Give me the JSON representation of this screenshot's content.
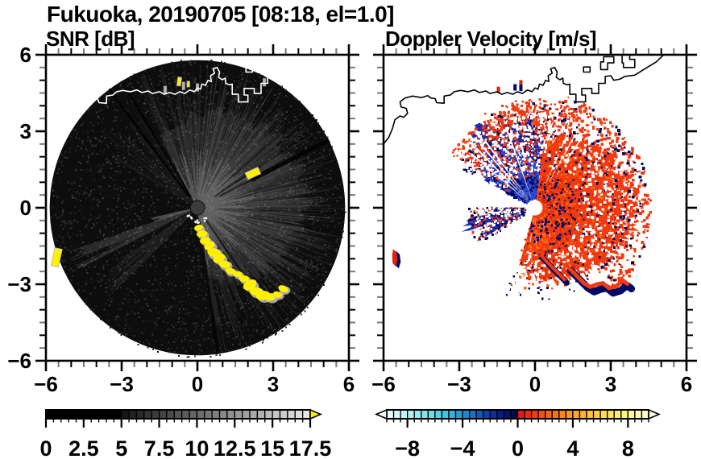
{
  "figure": {
    "title": "Fukuoka, 20190705 [08:18, el=1.0]",
    "site": "Fukuoka",
    "date": "20190705",
    "time": "08:18",
    "elevation": "1.0",
    "background": "#FFFFFF",
    "text_color": "#000000"
  },
  "coastline": {
    "main": [
      [
        -6,
        2.5
      ],
      [
        -5.8,
        2.75
      ],
      [
        -5.65,
        3.1
      ],
      [
        -5.55,
        3.45
      ],
      [
        -5.35,
        3.6
      ],
      [
        -5.2,
        3.55
      ],
      [
        -5.05,
        3.7
      ],
      [
        -5.1,
        3.9
      ],
      [
        -5.3,
        3.95
      ],
      [
        -5.35,
        4.15
      ],
      [
        -5.15,
        4.3
      ],
      [
        -4.85,
        4.38
      ],
      [
        -4.5,
        4.32
      ],
      [
        -4.25,
        4.4
      ],
      [
        -4.12,
        4.3
      ],
      [
        -3.95,
        4.28
      ],
      [
        -3.9,
        4.12
      ],
      [
        -3.6,
        4.1
      ],
      [
        -3.6,
        4.38
      ],
      [
        -3.35,
        4.42
      ],
      [
        -3.2,
        4.55
      ],
      [
        -2.95,
        4.6
      ],
      [
        -2.65,
        4.55
      ],
      [
        -2.4,
        4.62
      ],
      [
        -2.2,
        4.52
      ],
      [
        -1.95,
        4.58
      ],
      [
        -1.78,
        4.48
      ],
      [
        -1.5,
        4.55
      ],
      [
        -1.32,
        4.45
      ],
      [
        -1.1,
        4.52
      ],
      [
        -0.88,
        4.45
      ],
      [
        -0.7,
        4.55
      ],
      [
        -0.5,
        4.48
      ],
      [
        -0.3,
        4.62
      ],
      [
        -0.12,
        4.55
      ],
      [
        0,
        4.7
      ],
      [
        0.12,
        4.65
      ],
      [
        0.18,
        4.85
      ],
      [
        0.32,
        4.8
      ],
      [
        0.42,
        5.0
      ],
      [
        0.55,
        4.95
      ],
      [
        0.52,
        5.18
      ],
      [
        0.68,
        5.28
      ],
      [
        0.62,
        5.45
      ],
      [
        0.78,
        5.5
      ],
      [
        0.88,
        5.32
      ],
      [
        0.84,
        5.12
      ],
      [
        0.98,
        5.02
      ],
      [
        1.1,
        5.08
      ],
      [
        1.12,
        4.88
      ],
      [
        1.28,
        4.82
      ],
      [
        1.38,
        4.85
      ],
      [
        1.38,
        4.45
      ],
      [
        1.62,
        4.45
      ],
      [
        1.62,
        4.15
      ],
      [
        2.0,
        4.15
      ],
      [
        2.0,
        4.42
      ],
      [
        1.85,
        4.42
      ],
      [
        1.85,
        4.68
      ],
      [
        2.25,
        4.68
      ],
      [
        2.25,
        4.48
      ],
      [
        2.52,
        4.48
      ],
      [
        2.52,
        4.88
      ],
      [
        2.78,
        4.88
      ],
      [
        2.78,
        5.15
      ],
      [
        3.0,
        5.18
      ],
      [
        3.12,
        5.0
      ],
      [
        3.38,
        5.05
      ],
      [
        3.55,
        5.15
      ],
      [
        3.95,
        5.2
      ],
      [
        4.35,
        5.45
      ],
      [
        4.8,
        5.72
      ],
      [
        5.15,
        6.05
      ]
    ],
    "islands": [
      [
        [
          2.6,
          5.42
        ],
        [
          2.88,
          5.42
        ],
        [
          2.88,
          5.68
        ],
        [
          3.12,
          5.68
        ],
        [
          3.12,
          5.92
        ],
        [
          2.72,
          5.92
        ],
        [
          2.72,
          5.72
        ],
        [
          2.6,
          5.72
        ]
      ],
      [
        [
          3.5,
          5.5
        ],
        [
          3.95,
          5.5
        ],
        [
          3.95,
          5.82
        ],
        [
          3.75,
          5.82
        ],
        [
          3.75,
          6.02
        ],
        [
          3.45,
          6.02
        ],
        [
          3.45,
          5.68
        ],
        [
          3.5,
          5.68
        ]
      ],
      [
        [
          1.92,
          5.32
        ],
        [
          2.18,
          5.32
        ],
        [
          2.18,
          5.52
        ],
        [
          1.92,
          5.52
        ]
      ]
    ]
  },
  "chart_data": [
    {
      "type": "radar_ppi",
      "title": "SNR [dB]",
      "units": "dB",
      "site": "Fukuoka",
      "datetime": "20190705 08:18",
      "elevation_deg": 1.0,
      "axis": {
        "xmin": -6,
        "xmax": 6,
        "ymin": -6,
        "ymax": 6,
        "major_ticks": [
          -6,
          -3,
          0,
          3,
          6
        ],
        "tick_labels": [
          "−6",
          "−3",
          "0",
          "3",
          "6"
        ],
        "minor_step": 0.5,
        "show_y_labels": true
      },
      "colorbar": {
        "vmin": 0,
        "vmax": 17.5,
        "cell": 0.5,
        "tick_values": [
          0,
          2.5,
          5,
          7.5,
          10,
          12.5,
          15,
          17.5
        ],
        "tick_labels": [
          "0",
          "2.5",
          "5",
          "7.5",
          "10",
          "12.5",
          "15",
          "17.5"
        ],
        "cell_colors": [
          "#000000",
          "#000000",
          "#000000",
          "#000000",
          "#000000",
          "#000000",
          "#000000",
          "#000000",
          "#000000",
          "#000000",
          "#181818",
          "#212121",
          "#292929",
          "#323232",
          "#3A3A3A",
          "#434343",
          "#4B4B4B",
          "#545454",
          "#5C5C5C",
          "#656565",
          "#6E6E6E",
          "#767676",
          "#7F7F7F",
          "#878787",
          "#909090",
          "#989898",
          "#A1A1A1",
          "#A9A9A9",
          "#B2B2B2",
          "#BBBBBB",
          "#C3C3C3",
          "#CCCCCC",
          "#D4D4D4",
          "#DDDDDD",
          "#E5E5E5"
        ],
        "over_arrow_color": "#FFF000",
        "under_arrow_color": null
      },
      "features": {
        "scan_radius": 5.85,
        "disc_color": "#0D0D0D",
        "center_dot": {
          "x": 0,
          "y": 0,
          "r": 0.27,
          "color": "#3C3C3C"
        },
        "bright_sectors": [
          {
            "az1": -28,
            "az2": 172,
            "n": 430,
            "rmin": 1.0,
            "rmax": 5.8,
            "alpha": 0.1
          },
          {
            "az1": -28,
            "az2": 172,
            "n": 210,
            "rmin": 0.4,
            "rmax": 2.4,
            "alpha": 0.22
          },
          {
            "az1": 5,
            "az2": 135,
            "n": 210,
            "rmin": 1.5,
            "rmax": 5.6,
            "alpha": 0.1
          },
          {
            "az1": 243,
            "az2": 252,
            "n": 70,
            "rmin": 1.0,
            "rmax": 5.4,
            "alpha": 0.16
          },
          {
            "az1": 225,
            "az2": 236,
            "n": 50,
            "rmin": 1.0,
            "rmax": 4.8,
            "alpha": 0.09
          },
          {
            "az1": 252,
            "az2": 258,
            "n": 30,
            "rmin": 0.4,
            "rmax": 1.9,
            "alpha": 0.3
          },
          {
            "az1": -60,
            "az2": -29,
            "n": 60,
            "rmin": 0.8,
            "rmax": 5.0,
            "alpha": 0.06
          },
          {
            "az1": 150,
            "az2": 172,
            "n": 40,
            "rmin": 0.5,
            "rmax": 3.0,
            "alpha": 0.08
          }
        ],
        "dark_rays": [
          {
            "az": -37,
            "r1": 0.5,
            "r2": 5.8,
            "w": 2.5,
            "alpha": 0.85
          },
          {
            "az": -31,
            "r1": 0.5,
            "r2": 5.8,
            "w": 2.0,
            "alpha": 0.85
          },
          {
            "az": 63,
            "r1": 2.4,
            "r2": 5.85,
            "w": 5.0,
            "alpha": 0.9
          },
          {
            "az": 63,
            "r1": 1.0,
            "r2": 2.4,
            "w": 2.0,
            "alpha": 0.6
          },
          {
            "az": 57,
            "r1": 0.8,
            "r2": 3.0,
            "w": 1.5,
            "alpha": 0.6
          },
          {
            "az": 145,
            "r1": 0.6,
            "r2": 3.6,
            "w": 2.5,
            "alpha": 0.5
          },
          {
            "az": 100,
            "r1": 2.0,
            "r2": 5.8,
            "w": 2.0,
            "alpha": 0.35
          },
          {
            "az": 172,
            "r1": 0.5,
            "r2": 5.8,
            "w": 3.0,
            "alpha": 0.7
          }
        ],
        "clutter_color": "#FFF000",
        "clutter_arc": [
          [
            0.05,
            -0.78
          ],
          [
            0.18,
            -1.02
          ],
          [
            0.3,
            -1.28
          ],
          [
            0.48,
            -1.48
          ],
          [
            0.66,
            -1.76
          ],
          [
            0.86,
            -1.98
          ],
          [
            1.08,
            -2.22
          ],
          [
            1.3,
            -2.48
          ],
          [
            1.6,
            -2.6
          ],
          [
            1.84,
            -2.78
          ],
          [
            2.08,
            -3.02
          ],
          [
            2.32,
            -3.28
          ],
          [
            2.6,
            -3.44
          ],
          [
            2.9,
            -3.5
          ],
          [
            3.18,
            -3.4
          ],
          [
            3.4,
            -3.18
          ]
        ],
        "clutter_patches": [
          {
            "x": 2.2,
            "y": 1.35,
            "w": 0.55,
            "h": 0.28,
            "rot": -25
          },
          {
            "x": -5.58,
            "y": -1.95,
            "w": 0.3,
            "h": 0.72,
            "rot": 12
          },
          {
            "x": -0.72,
            "y": 4.95,
            "w": 0.14,
            "h": 0.34,
            "rot": 8
          },
          {
            "x": -0.36,
            "y": 4.85,
            "w": 0.1,
            "h": 0.22,
            "rot": 0
          }
        ],
        "gray_dashes": [
          [
            -1.28,
            4.62
          ],
          [
            0.0,
            4.72
          ],
          [
            2.65,
            4.92
          ],
          [
            -0.55,
            4.78
          ]
        ]
      }
    },
    {
      "type": "radar_ppi",
      "title": "Doppler Velocity [m/s]",
      "units": "m/s",
      "site": "Fukuoka",
      "datetime": "20190705 08:18",
      "elevation_deg": 1.0,
      "axis": {
        "xmin": -6,
        "xmax": 6,
        "ymin": -6,
        "ymax": 6,
        "major_ticks": [
          -6,
          -3,
          0,
          3,
          6
        ],
        "tick_labels": [
          "−6",
          "−3",
          "0",
          "3",
          "6"
        ],
        "minor_step": 0.5,
        "show_y_labels": false
      },
      "colorbar": {
        "vmin": -9.5,
        "vmax": 9.5,
        "cell": 0.5,
        "tick_values": [
          -8,
          -4,
          0,
          4,
          8
        ],
        "tick_labels": [
          "−8",
          "−4",
          "0",
          "4",
          "8"
        ],
        "cell_colors": [
          "#EAFBFB",
          "#D8F7F8",
          "#C4F3F6",
          "#B0EEF3",
          "#9BE9F0",
          "#85E3ED",
          "#6FDCEA",
          "#58D2E6",
          "#43C4E1",
          "#33B2DA",
          "#2A9DD2",
          "#2287C9",
          "#1B70BF",
          "#1459B5",
          "#0D43AB",
          "#07309E",
          "#03208A",
          "#01136E",
          "#000A50",
          "#E61A10",
          "#EB2C10",
          "#F03E10",
          "#F45011",
          "#F76214",
          "#F97318",
          "#FB841D",
          "#FC9423",
          "#FDA42A",
          "#FDB233",
          "#FEC03D",
          "#FECD48",
          "#FED955",
          "#FEE363",
          "#FEEC74",
          "#FFF287",
          "#FFF79C",
          "#FFFAB3",
          "#FFFCCB"
        ],
        "over_arrow_color": "#FFFDE6",
        "under_arrow_color": "#EDFBFB"
      },
      "features": {
        "negative_color": "#1B2DB4",
        "navy": "#000A64",
        "light_blue": "#2E4BD0",
        "positive_color": "#F23A10",
        "orange": "#FA6A12",
        "deep_red": "#D42408",
        "blue_fan": {
          "az1": -62,
          "az2": 8,
          "r_inner": 0.33,
          "r_profile": [
            [
              -62,
              2.3
            ],
            [
              -50,
              3.1
            ],
            [
              -40,
              3.6
            ],
            [
              -28,
              3.7
            ],
            [
              -15,
              3.5
            ],
            [
              -5,
              3.3
            ],
            [
              8,
              2.9
            ]
          ],
          "gap_rays": [
            -50,
            -45,
            -41,
            -37,
            -20
          ]
        },
        "west_wedges": [
          {
            "az1": 240,
            "az2": 250,
            "r1": 0.4,
            "r2": 2.4
          },
          {
            "az1": 251,
            "az2": 262,
            "r1": 0.35,
            "r2": 2.95
          },
          {
            "az1": 264,
            "az2": 271,
            "r1": 0.4,
            "r2": 1.7
          }
        ],
        "red_fan": {
          "az1": 8,
          "az2": 196,
          "r_inner": 0.3,
          "r_profile": [
            [
              8,
              2.6
            ],
            [
              30,
              3.2
            ],
            [
              55,
              3.7
            ],
            [
              90,
              4.0
            ],
            [
              115,
              3.8
            ],
            [
              135,
              3.4
            ],
            [
              155,
              3.0
            ],
            [
              175,
              2.9
            ],
            [
              196,
              2.3
            ]
          ],
          "gap_rays": [
            152,
            178,
            188
          ],
          "boundary_gap_rays": [
            24,
            29,
            34
          ]
        },
        "mass_fringe": [
          [
            0.28,
            -1.9
          ],
          [
            0.5,
            -2.15
          ],
          [
            0.75,
            -2.4
          ],
          [
            1.0,
            -2.65
          ],
          [
            1.2,
            -2.85
          ]
        ],
        "fringe_arc": [
          [
            1.3,
            -2.35
          ],
          [
            1.55,
            -2.6
          ],
          [
            1.8,
            -2.85
          ],
          [
            2.0,
            -3.05
          ],
          [
            2.25,
            -3.2
          ],
          [
            2.5,
            -3.1
          ],
          [
            2.75,
            -3.05
          ],
          [
            3.0,
            -3.25
          ],
          [
            3.3,
            -3.15
          ],
          [
            3.55,
            -2.95
          ],
          [
            3.72,
            -3.08
          ]
        ],
        "edge_patch": {
          "red": [
            [
              -5.62,
              -1.62
            ],
            [
              -5.48,
              -1.75
            ],
            [
              -5.44,
              -2.05
            ],
            [
              -5.52,
              -2.3
            ],
            [
              -5.64,
              -2.18
            ],
            [
              -5.66,
              -1.85
            ]
          ],
          "navy_offset": [
            0.12,
            -0.08
          ]
        },
        "top_specks": [
          {
            "x": -0.79,
            "y": 4.72,
            "color": "#000A64"
          },
          {
            "x": -0.56,
            "y": 4.88,
            "color": "#E62010"
          },
          {
            "x": -0.56,
            "y": 4.7,
            "color": "#000A64"
          },
          {
            "x": -1.45,
            "y": 4.62,
            "color": "#E62010"
          }
        ],
        "center_hole": {
          "r": 0.24
        }
      }
    }
  ]
}
